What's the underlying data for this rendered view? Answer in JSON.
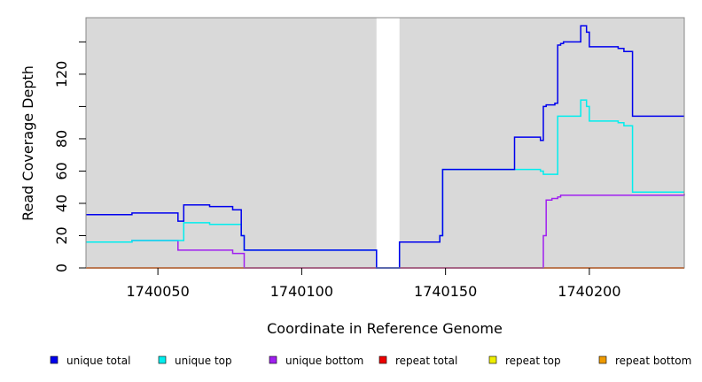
{
  "chart_data": {
    "type": "line",
    "xlabel": "Coordinate in Reference Genome",
    "ylabel": "Read Coverage Depth",
    "xlim": [
      1740025,
      1740233
    ],
    "ylim": [
      0,
      155
    ],
    "x_ticks": [
      1740050,
      1740100,
      1740150,
      1740200
    ],
    "x_tick_labels": [
      "1740050",
      "1740100",
      "1740150",
      "1740200"
    ],
    "y_ticks": [
      0,
      20,
      40,
      60,
      80,
      100,
      120,
      140
    ],
    "y_tick_labels": [
      "0",
      "20",
      "40",
      "60",
      "80",
      "",
      "120",
      ""
    ],
    "background": "#d9d9d9",
    "grid": false,
    "gap": [
      1740126,
      1740134
    ],
    "legend_position": "bottom",
    "series": [
      {
        "name": "unique total",
        "color": "#0000ee",
        "x": [
          1740025,
          1740041,
          1740057,
          1740059,
          1740068,
          1740076,
          1740079,
          1740080,
          1740126,
          1740126,
          1740134,
          1740134,
          1740148,
          1740149,
          1740174,
          1740183,
          1740184,
          1740185,
          1740186,
          1740188,
          1740189,
          1740190,
          1740191,
          1740197,
          1740199,
          1740200,
          1740210,
          1740212,
          1740215,
          1740233
        ],
        "y": [
          33,
          34,
          29,
          39,
          38,
          36,
          20,
          11,
          11,
          0,
          0,
          16,
          20,
          61,
          81,
          79,
          100,
          101,
          101,
          102,
          138,
          139,
          140,
          150,
          146,
          137,
          136,
          134,
          94,
          94
        ]
      },
      {
        "name": "unique top",
        "color": "#00eeee",
        "x": [
          1740025,
          1740041,
          1740057,
          1740059,
          1740068,
          1740076,
          1740079,
          1740080,
          1740126,
          1740126,
          1740134,
          1740134,
          1740148,
          1740149,
          1740174,
          1740183,
          1740184,
          1740189,
          1740197,
          1740199,
          1740200,
          1740210,
          1740212,
          1740215,
          1740233
        ],
        "y": [
          16,
          17,
          17,
          28,
          27,
          27,
          20,
          11,
          11,
          0,
          0,
          16,
          20,
          61,
          61,
          60,
          58,
          94,
          104,
          100,
          91,
          90,
          88,
          47,
          47
        ]
      },
      {
        "name": "unique bottom",
        "color": "#a020f0",
        "x": [
          1740025,
          1740041,
          1740057,
          1740076,
          1740080,
          1740174,
          1740184,
          1740185,
          1740187,
          1740189,
          1740190,
          1740233
        ],
        "y": [
          16,
          17,
          11,
          9,
          0,
          0,
          20,
          42,
          43,
          44,
          45,
          46
        ]
      },
      {
        "name": "repeat total",
        "color": "#ee0000",
        "x": [
          1740025,
          1740233
        ],
        "y": [
          0,
          0
        ]
      },
      {
        "name": "repeat top",
        "color": "#eeee00",
        "x": [
          1740025,
          1740233
        ],
        "y": [
          0,
          0
        ]
      },
      {
        "name": "repeat bottom",
        "color": "#ee9a00",
        "x": [
          1740025,
          1740233
        ],
        "y": [
          0,
          0
        ]
      }
    ]
  }
}
